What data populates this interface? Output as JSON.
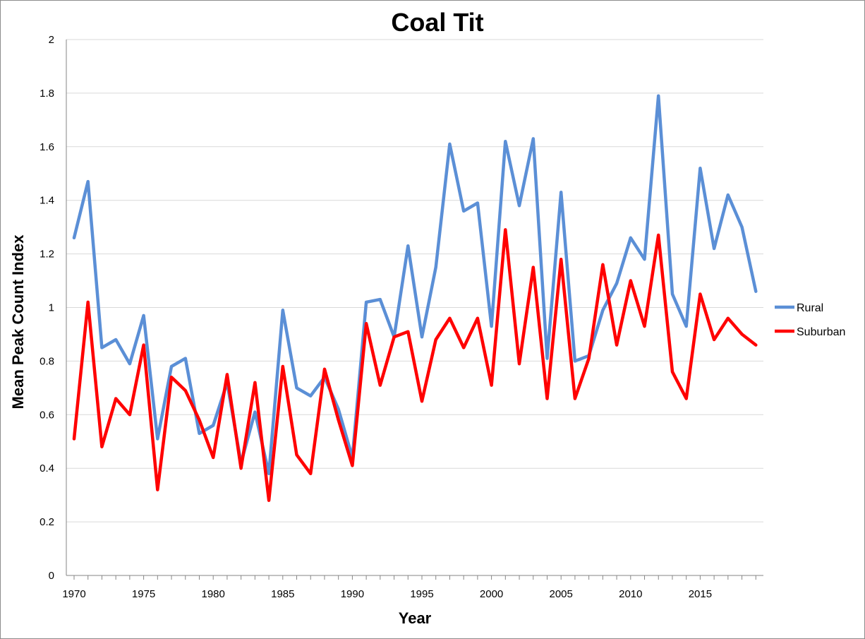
{
  "chart_data": {
    "type": "line",
    "title": "Coal Tit",
    "xlabel": "Year",
    "ylabel": "Mean Peak Count Index",
    "xlim": [
      1970,
      2019
    ],
    "ylim": [
      0,
      2
    ],
    "x_ticks": [
      "1970",
      "1975",
      "1980",
      "1985",
      "1990",
      "1995",
      "2000",
      "2005",
      "2010",
      "2015"
    ],
    "y_ticks": [
      "0",
      "0.2",
      "0.4",
      "0.6",
      "0.8",
      "1",
      "1.2",
      "1.4",
      "1.6",
      "1.8",
      "2"
    ],
    "grid": "horizontal",
    "legend_position": "right",
    "x": [
      1970,
      1971,
      1972,
      1973,
      1974,
      1975,
      1976,
      1977,
      1978,
      1979,
      1980,
      1981,
      1982,
      1983,
      1984,
      1985,
      1986,
      1987,
      1988,
      1989,
      1990,
      1991,
      1992,
      1993,
      1994,
      1995,
      1996,
      1997,
      1998,
      1999,
      2000,
      2001,
      2002,
      2003,
      2004,
      2005,
      2006,
      2007,
      2008,
      2009,
      2010,
      2011,
      2012,
      2013,
      2014,
      2015,
      2016,
      2017,
      2018,
      2019
    ],
    "series": [
      {
        "name": "Rural",
        "color": "#5b8fd6",
        "values": [
          1.26,
          1.47,
          0.85,
          0.88,
          0.79,
          0.97,
          0.51,
          0.78,
          0.81,
          0.53,
          0.56,
          0.72,
          0.42,
          0.61,
          0.38,
          0.99,
          0.7,
          0.67,
          0.74,
          0.62,
          0.44,
          1.02,
          1.03,
          0.89,
          1.23,
          0.89,
          1.15,
          1.61,
          1.36,
          1.39,
          0.93,
          1.62,
          1.38,
          1.63,
          0.81,
          1.43,
          0.8,
          0.82,
          0.99,
          1.09,
          1.26,
          1.18,
          1.79,
          1.05,
          0.93,
          1.52,
          1.22,
          1.42,
          1.3,
          1.06
        ]
      },
      {
        "name": "Suburban",
        "color": "#ff0000",
        "values": [
          0.51,
          1.02,
          0.48,
          0.66,
          0.6,
          0.86,
          0.32,
          0.74,
          0.69,
          0.58,
          0.44,
          0.75,
          0.4,
          0.72,
          0.28,
          0.78,
          0.45,
          0.38,
          0.77,
          0.58,
          0.41,
          0.94,
          0.71,
          0.89,
          0.91,
          0.65,
          0.88,
          0.96,
          0.85,
          0.96,
          0.71,
          1.29,
          0.79,
          1.15,
          0.66,
          1.18,
          0.66,
          0.81,
          1.16,
          0.86,
          1.1,
          0.93,
          1.27,
          0.76,
          0.66,
          1.05,
          0.88,
          0.96,
          0.9,
          0.86
        ]
      }
    ]
  }
}
